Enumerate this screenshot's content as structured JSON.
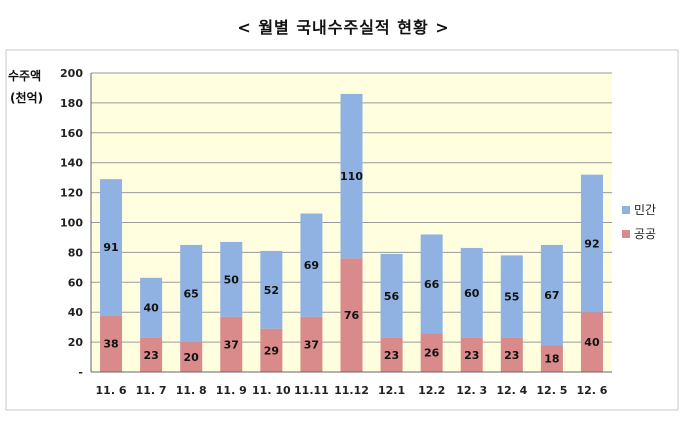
{
  "title": "< 월별 국내수주실적 현황 >",
  "chart_data": {
    "type": "bar",
    "stacked": true,
    "title": "< 월별 국내수주실적 현황 >",
    "ylabel_line1": "수주액",
    "ylabel_line2": "(천억)",
    "categories": [
      "11. 6",
      "11. 7",
      "11. 8",
      "11. 9",
      "11. 10",
      "11.11",
      "11.12",
      "12.1",
      "12.2",
      "12. 3",
      "12. 4",
      "12. 5",
      "12. 6"
    ],
    "series": [
      {
        "name": "공공",
        "color": "#d98a8a",
        "values": [
          38,
          23,
          20,
          37,
          29,
          37,
          76,
          23,
          26,
          23,
          23,
          18,
          40
        ]
      },
      {
        "name": "민간",
        "color": "#8fb2e2",
        "values": [
          91,
          40,
          65,
          50,
          52,
          69,
          110,
          56,
          66,
          60,
          55,
          67,
          92
        ]
      }
    ],
    "yticks": [
      "-",
      "20",
      "40",
      "60",
      "80",
      "100",
      "120",
      "140",
      "160",
      "180",
      "200"
    ],
    "ylim": [
      0,
      200
    ],
    "grid": true,
    "plot_background": "#ffffe0",
    "legend_position": "right"
  }
}
